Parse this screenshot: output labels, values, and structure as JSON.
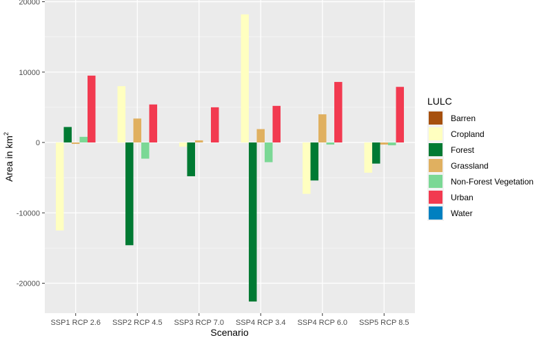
{
  "chart_data": {
    "type": "bar",
    "title": "",
    "xlabel": "Scenario",
    "ylabel": "Area in km",
    "ylabel_superscript": "2",
    "categories": [
      "SSP1 RCP 2.6",
      "SSP2 RCP 4.5",
      "SSP3 RCP 7.0",
      "SSP4 RCP 3.4",
      "SSP4 RCP 6.0",
      "SSP5 RCP 8.5"
    ],
    "ylim": [
      -25000,
      20000
    ],
    "yticks": [
      -20000,
      -10000,
      0,
      10000,
      20000
    ],
    "ytick_labels": [
      "-20000",
      "-10000",
      "0",
      "10000",
      "20000"
    ],
    "grid": true,
    "legend_title": "LULC",
    "legend_position": "right",
    "series": [
      {
        "name": "Barren",
        "color": "#A6500E",
        "values": [
          0,
          0,
          0,
          0,
          0,
          0
        ]
      },
      {
        "name": "Cropland",
        "color": "#FFFFC0",
        "values": [
          -12500,
          8000,
          -600,
          18200,
          -7300,
          -4300
        ]
      },
      {
        "name": "Forest",
        "color": "#007A33",
        "values": [
          2200,
          -14600,
          -4800,
          -22600,
          -5400,
          -3000
        ]
      },
      {
        "name": "Grassland",
        "color": "#E0B060",
        "values": [
          -200,
          3400,
          300,
          1900,
          4000,
          -300
        ]
      },
      {
        "name": "Non-Forest Vegetation",
        "color": "#7BD895",
        "values": [
          800,
          -2300,
          0,
          -2800,
          -300,
          -400
        ]
      },
      {
        "name": "Urban",
        "color": "#F23A50",
        "values": [
          9500,
          5400,
          5000,
          5200,
          8600,
          7900
        ]
      },
      {
        "name": "Water",
        "color": "#0080C0",
        "values": [
          0,
          0,
          0,
          0,
          0,
          0
        ]
      }
    ]
  }
}
